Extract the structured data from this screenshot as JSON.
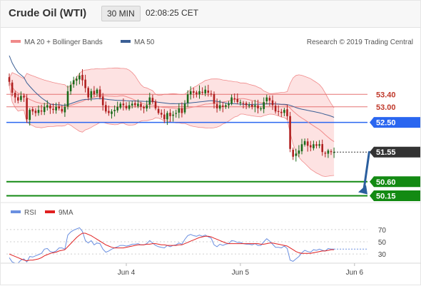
{
  "header": {
    "instrument": "Crude Oil (WTI)",
    "timeframe": "30 MIN",
    "time": "02:08:25 CET"
  },
  "legend": {
    "ma20": "MA 20 + Bollinger Bands",
    "ma50": "MA 50",
    "credit": "Research © 2019 Trading Central",
    "rsi": "RSI",
    "ma9": "9MA"
  },
  "colors": {
    "ma20": "#f08a8a",
    "band_fill": "#fde2e2",
    "ma50": "#3b5f95",
    "candle_up": "#1a6b1a",
    "candle_down": "#b02020",
    "pivot": "#2a66f0",
    "support": "#138a13",
    "resistance": "#e57373",
    "last_price": "#333333",
    "rsi": "#6a8fe0",
    "rsi_ma": "#e02020",
    "arrow": "#2a5e9e"
  },
  "chart_data": [
    {
      "type": "candlestick",
      "title": "Crude Oil (WTI)",
      "interval": "30 MIN",
      "ylim": [
        50.0,
        54.8
      ],
      "x_labels": [
        "Jun 4",
        "Jun 5",
        "Jun 6"
      ],
      "x_label_bars": [
        40,
        79,
        118
      ],
      "levels": [
        {
          "value": 53.4,
          "label": "53.40",
          "kind": "resistance"
        },
        {
          "value": 53.0,
          "label": "53.00",
          "kind": "resistance"
        },
        {
          "value": 52.5,
          "label": "52.50",
          "kind": "pivot"
        },
        {
          "value": 51.55,
          "label": "51.55",
          "kind": "last"
        },
        {
          "value": 50.6,
          "label": "50.60",
          "kind": "support"
        },
        {
          "value": 50.15,
          "label": "50.15",
          "kind": "support"
        }
      ],
      "forecast": {
        "from_bar": 124,
        "from": 51.55,
        "to": 50.15
      },
      "closes": [
        53.8,
        53.45,
        53.3,
        53.2,
        53.35,
        53.3,
        52.6,
        52.9,
        52.85,
        52.8,
        52.9,
        52.85,
        53.0,
        53.05,
        52.95,
        52.9,
        53.0,
        52.95,
        52.85,
        53.0,
        53.5,
        53.7,
        53.85,
        53.9,
        54.0,
        53.85,
        53.6,
        53.3,
        53.5,
        53.4,
        53.55,
        53.3,
        53.05,
        52.85,
        52.8,
        52.85,
        52.9,
        53.0,
        53.1,
        53.05,
        52.95,
        53.05,
        53.1,
        53.05,
        53.1,
        53.0,
        52.95,
        53.05,
        53.3,
        53.15,
        52.95,
        52.8,
        52.75,
        52.6,
        52.8,
        52.7,
        52.75,
        52.8,
        52.95,
        52.8,
        53.1,
        53.4,
        53.5,
        53.45,
        53.4,
        53.5,
        53.45,
        53.55,
        53.45,
        53.4,
        53.1,
        52.95,
        53.05,
        53.0,
        53.05,
        53.1,
        53.3,
        53.25,
        53.15,
        53.15,
        53.1,
        53.05,
        53.05,
        53.0,
        53.05,
        52.95,
        52.95,
        53.15,
        53.3,
        53.2,
        53.05,
        52.85,
        52.85,
        52.8,
        52.9,
        52.7,
        51.65,
        51.4,
        51.5,
        51.6,
        51.8,
        51.9,
        51.75,
        51.7,
        51.8,
        51.75,
        51.8,
        51.55,
        51.5,
        51.6,
        51.55,
        51.55
      ]
    },
    {
      "type": "line",
      "title": "RSI",
      "ylim": [
        15,
        85
      ],
      "yticks": [
        70,
        50,
        30
      ],
      "series": [
        {
          "name": "RSI",
          "values": [
            24,
            17,
            15,
            15,
            20,
            22,
            17,
            26,
            25,
            27,
            29,
            31,
            38,
            39,
            34,
            33,
            35,
            40,
            40,
            38,
            61,
            66,
            69,
            71,
            73,
            67,
            52,
            48,
            52,
            45,
            48,
            47,
            38,
            33,
            35,
            38,
            40,
            42,
            44,
            44,
            43,
            44,
            46,
            46,
            47,
            45,
            45,
            47,
            52,
            48,
            44,
            42,
            41,
            40,
            44,
            42,
            44,
            45,
            48,
            46,
            54,
            60,
            62,
            60,
            59,
            61,
            59,
            61,
            58,
            56,
            45,
            42,
            46,
            44,
            46,
            47,
            52,
            51,
            49,
            49,
            47,
            46,
            46,
            45,
            47,
            44,
            44,
            50,
            55,
            51,
            46,
            41,
            41,
            40,
            43,
            39,
            20,
            18,
            22,
            26,
            32,
            36,
            34,
            33,
            37,
            36,
            38,
            36,
            35,
            39,
            38,
            38
          ]
        },
        {
          "name": "9MA",
          "values": [
            30,
            28,
            26,
            24,
            22,
            20,
            19,
            20,
            20,
            21,
            22,
            24,
            27,
            29,
            31,
            32,
            33,
            35,
            36,
            37,
            42,
            47,
            52,
            57,
            61,
            64,
            64,
            62,
            60,
            57,
            54,
            51,
            48,
            45,
            43,
            41,
            40,
            40,
            40,
            40,
            41,
            42,
            43,
            44,
            45,
            45,
            45,
            46,
            46,
            47,
            47,
            46,
            45,
            45,
            44,
            44,
            44,
            44,
            45,
            45,
            47,
            49,
            51,
            53,
            55,
            57,
            58,
            59,
            59,
            58,
            56,
            54,
            52,
            50,
            48,
            47,
            47,
            47,
            47,
            47,
            47,
            47,
            47,
            47,
            47,
            47,
            46,
            46,
            47,
            48,
            48,
            47,
            46,
            45,
            44,
            43,
            40,
            37,
            34,
            32,
            31,
            31,
            31,
            31,
            32,
            33,
            34,
            35,
            35,
            36,
            37,
            37
          ]
        }
      ]
    }
  ]
}
